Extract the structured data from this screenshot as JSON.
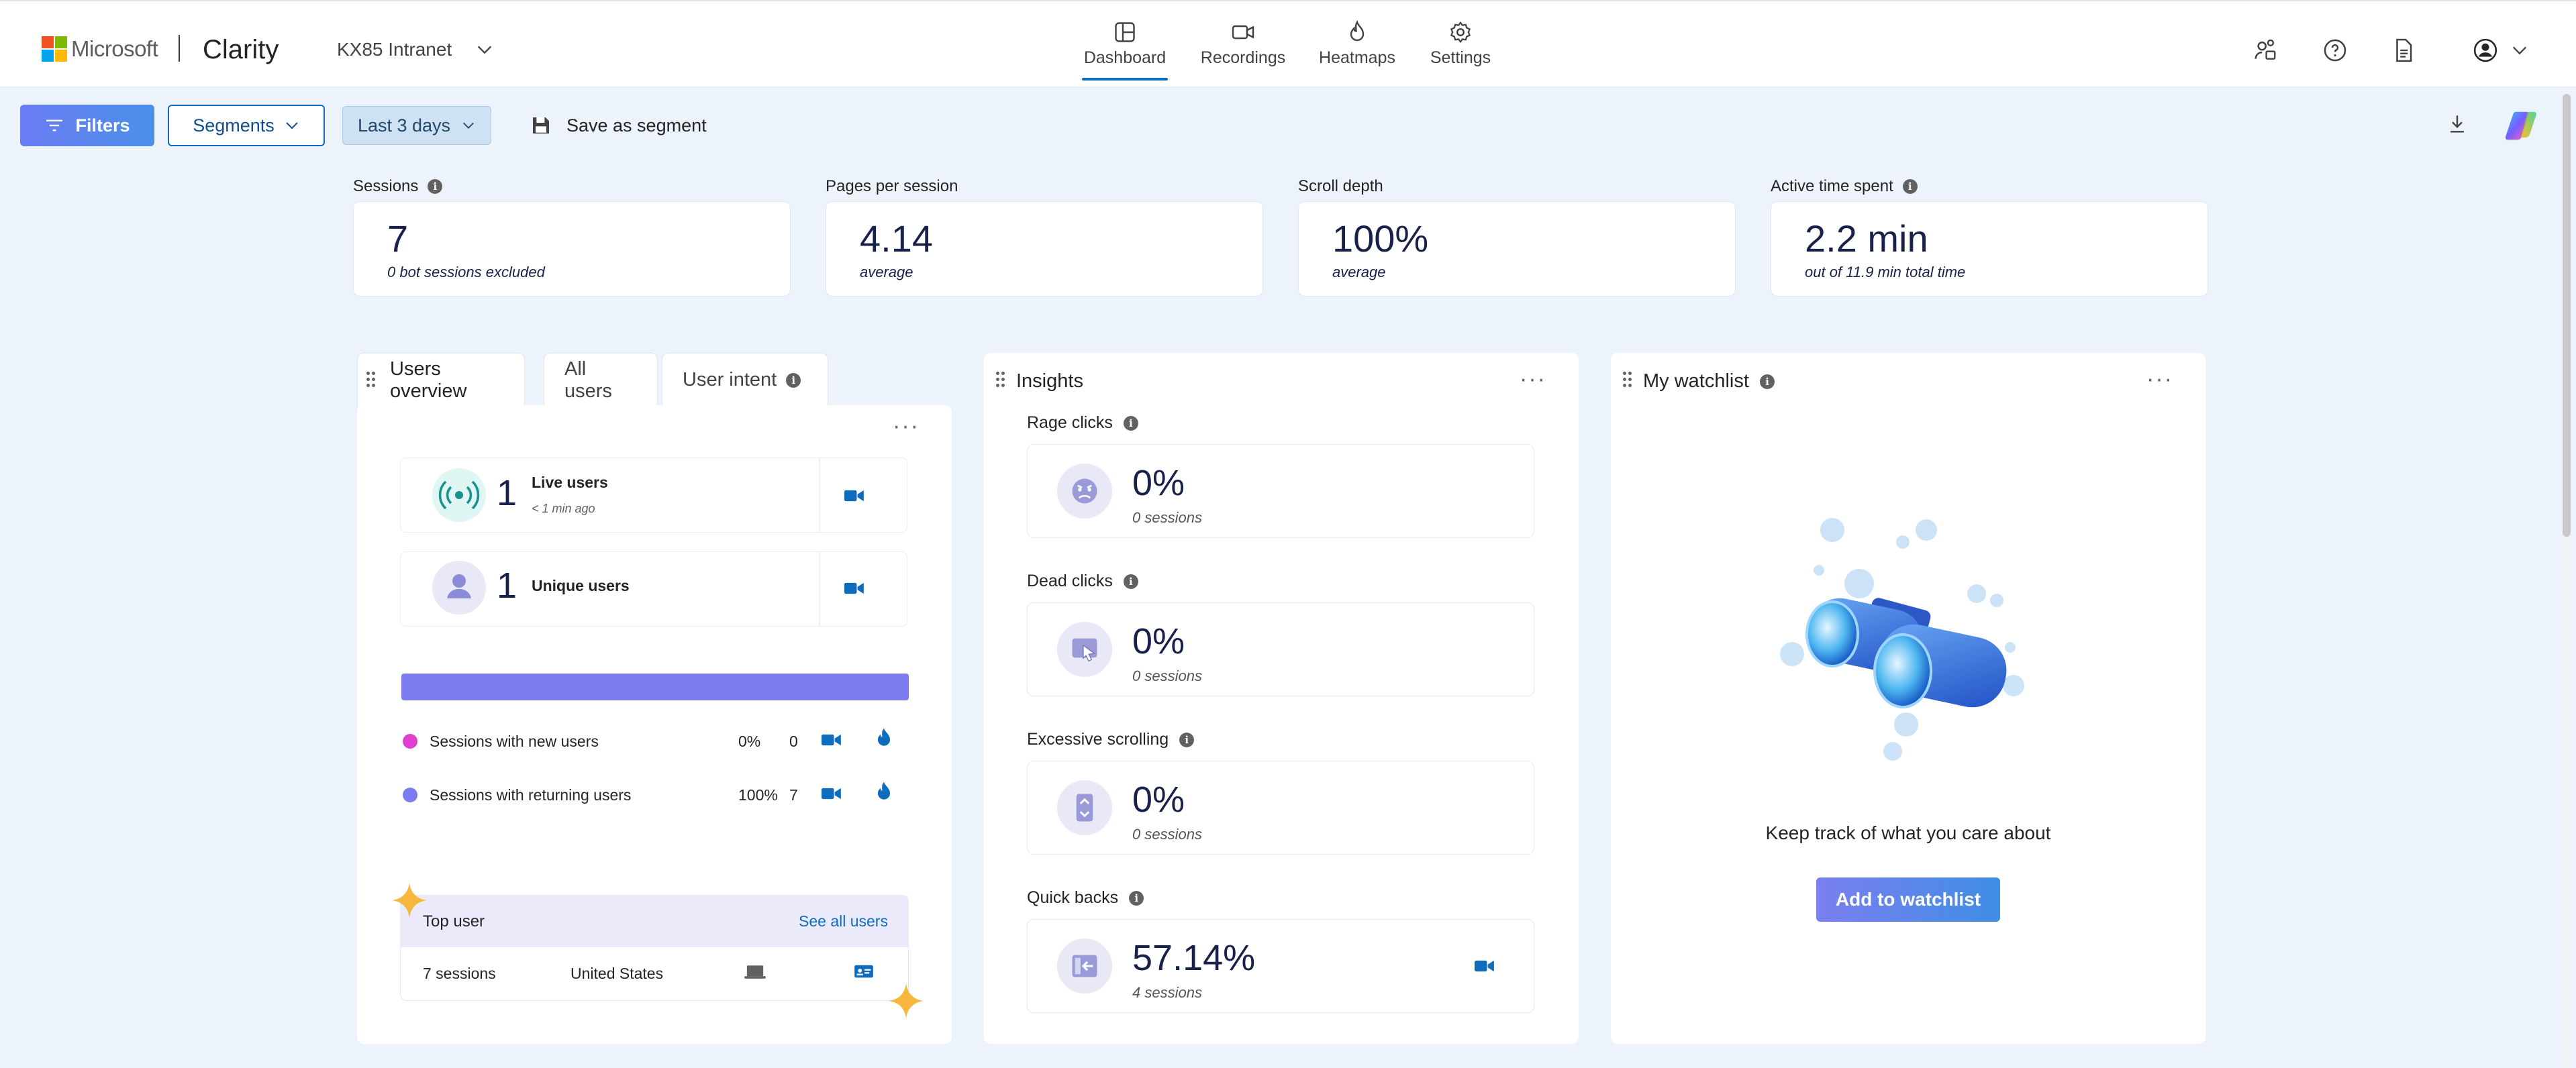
{
  "header": {
    "brand": "Microsoft",
    "product": "Clarity",
    "project": "KX85 Intranet",
    "nav": [
      {
        "label": "Dashboard",
        "icon": "dashboard-icon"
      },
      {
        "label": "Recordings",
        "icon": "video-icon"
      },
      {
        "label": "Heatmaps",
        "icon": "flame-icon"
      },
      {
        "label": "Settings",
        "icon": "gear-icon"
      }
    ],
    "active_nav": "Dashboard"
  },
  "toolbar": {
    "filters": "Filters",
    "segments": "Segments",
    "date_range": "Last 3 days",
    "save_segment": "Save as segment"
  },
  "metrics": [
    {
      "label": "Sessions",
      "value": "7",
      "sub": "0 bot sessions excluded",
      "info": true
    },
    {
      "label": "Pages per session",
      "value": "4.14",
      "sub": "average",
      "info": false
    },
    {
      "label": "Scroll depth",
      "value": "100%",
      "sub": "average",
      "info": false
    },
    {
      "label": "Active time spent",
      "value": "2.2 min",
      "sub": "out of 11.9 min total time",
      "info": true
    }
  ],
  "users": {
    "tabs": [
      "Users overview",
      "All users",
      "User intent"
    ],
    "live": {
      "count": "1",
      "label": "Live users",
      "sub": "< 1 min ago"
    },
    "unique": {
      "count": "1",
      "label": "Unique users"
    },
    "returning_fraction": 1.0,
    "rows": [
      {
        "label": "Sessions with new users",
        "pct": "0%",
        "count": "0",
        "color": "#e040d0"
      },
      {
        "label": "Sessions with returning users",
        "pct": "100%",
        "count": "7",
        "color": "#7a7cf0"
      }
    ],
    "top_user": {
      "title": "Top user",
      "link": "See all users",
      "sessions": "7 sessions",
      "country": "United States"
    }
  },
  "insights": {
    "title": "Insights",
    "items": [
      {
        "label": "Rage clicks",
        "value": "0%",
        "sub": "0 sessions"
      },
      {
        "label": "Dead clicks",
        "value": "0%",
        "sub": "0 sessions"
      },
      {
        "label": "Excessive scrolling",
        "value": "0%",
        "sub": "0 sessions"
      },
      {
        "label": "Quick backs",
        "value": "57.14%",
        "sub": "4 sessions"
      }
    ]
  },
  "watchlist": {
    "title": "My watchlist",
    "message": "Keep track of what you care about",
    "button": "Add to watchlist"
  },
  "colors": {
    "accent": "#0f6cbd",
    "bar": "#7a7cf0",
    "navy": "#17214a"
  }
}
